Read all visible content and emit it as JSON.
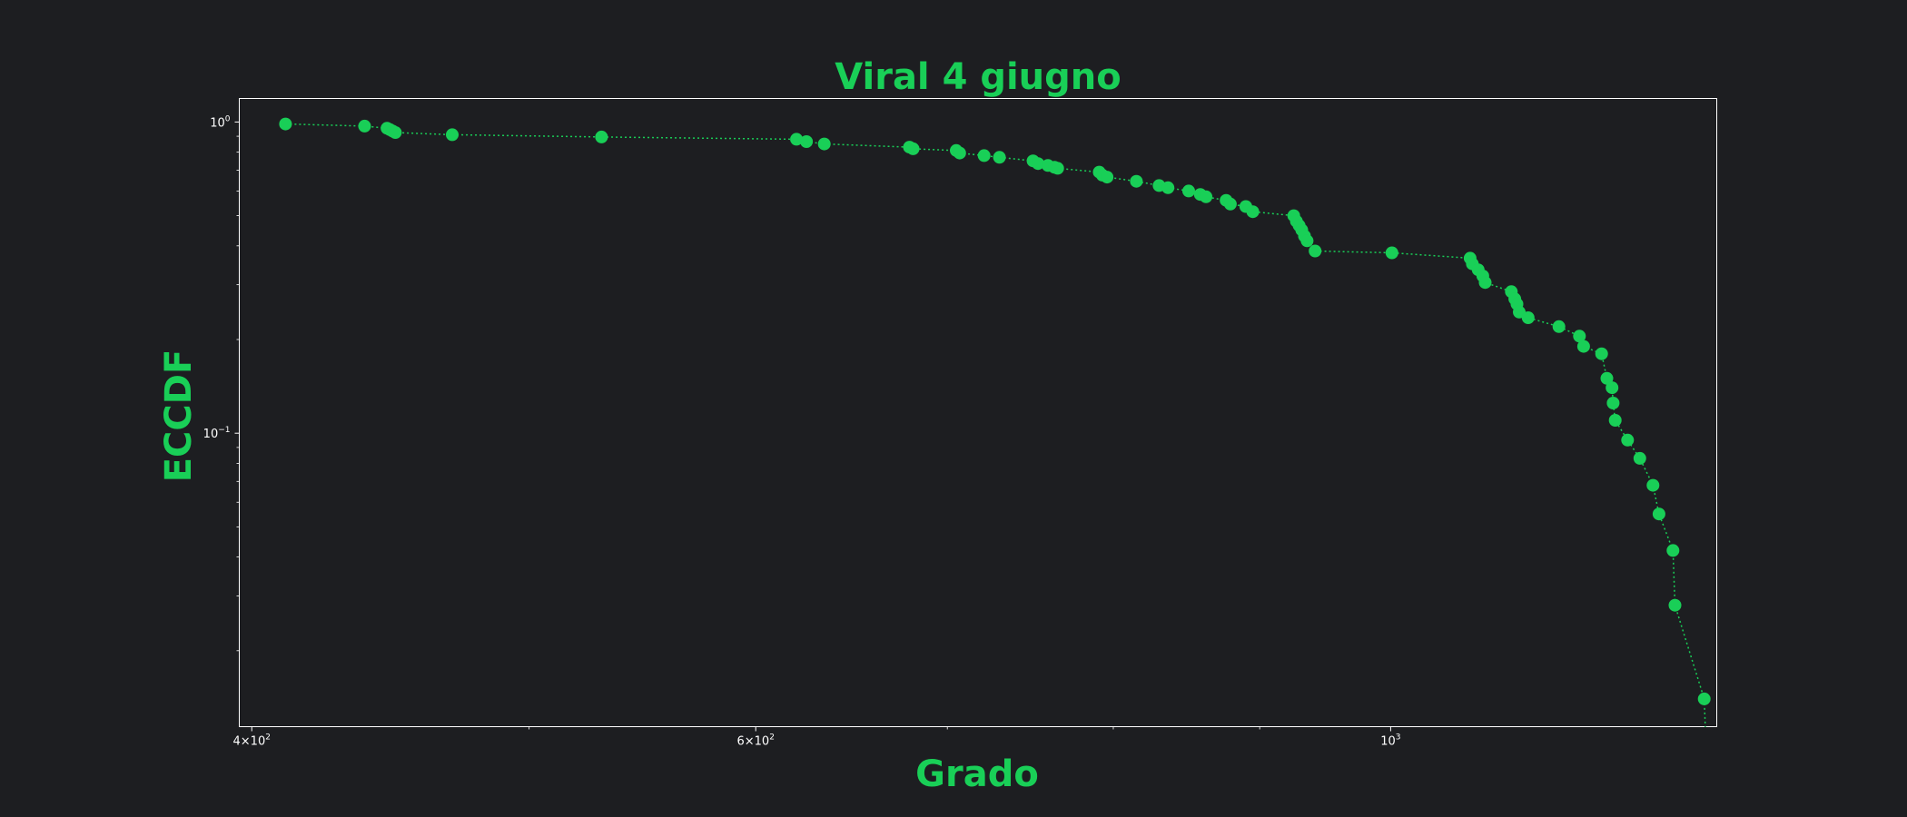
{
  "chart_data": {
    "type": "scatter",
    "title": "Viral 4 giugno",
    "xlabel": "Grado",
    "ylabel": "ECCDF",
    "xscale": "log",
    "yscale": "log",
    "xlim": [
      396,
      1300
    ],
    "ylim": [
      0.0114,
      1.19
    ],
    "grid": false,
    "legend": "none",
    "x_ticks": [
      {
        "value": 400,
        "base": "4",
        "exp": "2"
      },
      {
        "value": 600,
        "base": "6",
        "exp": "2"
      },
      {
        "value": 1000,
        "base": "",
        "exp": "3"
      }
    ],
    "x_minor_ticks": [
      500,
      700,
      800,
      900
    ],
    "y_ticks": [
      {
        "value": 1,
        "exp": "0"
      },
      {
        "value": 0.1,
        "exp": "−1"
      }
    ],
    "y_minor_ticks": [
      0.02,
      0.03,
      0.04,
      0.05,
      0.06,
      0.07,
      0.08,
      0.09,
      0.2,
      0.3,
      0.4,
      0.5,
      0.6,
      0.7,
      0.8,
      0.9
    ],
    "series": [
      {
        "x": [
          411,
          438,
          446,
          447,
          448,
          449,
          470,
          530,
          620,
          625,
          634,
          679,
          681,
          705,
          707,
          721,
          730,
          750,
          753,
          759,
          763,
          765,
          791,
          793,
          796,
          815,
          830,
          836,
          850,
          858,
          862,
          876,
          879,
          890,
          895,
          925,
          927,
          929,
          931,
          933,
          935,
          941,
          1001,
          1066,
          1068,
          1073,
          1077,
          1079,
          1102,
          1105,
          1107,
          1109,
          1117,
          1145,
          1164,
          1168,
          1185,
          1190,
          1195,
          1196,
          1198,
          1210,
          1222,
          1235,
          1241,
          1255,
          1257,
          1287,
          1289
        ],
        "y": [
          0.985,
          0.97,
          0.955,
          0.945,
          0.935,
          0.925,
          0.91,
          0.895,
          0.88,
          0.865,
          0.85,
          0.83,
          0.82,
          0.81,
          0.795,
          0.78,
          0.77,
          0.75,
          0.735,
          0.725,
          0.715,
          0.71,
          0.69,
          0.675,
          0.665,
          0.645,
          0.625,
          0.615,
          0.6,
          0.585,
          0.575,
          0.56,
          0.545,
          0.535,
          0.515,
          0.5,
          0.48,
          0.465,
          0.45,
          0.43,
          0.415,
          0.385,
          0.38,
          0.365,
          0.35,
          0.335,
          0.32,
          0.305,
          0.285,
          0.27,
          0.26,
          0.245,
          0.235,
          0.22,
          0.205,
          0.19,
          0.18,
          0.15,
          0.14,
          0.125,
          0.11,
          0.095,
          0.083,
          0.068,
          0.055,
          0.042,
          0.028,
          0.014,
          0.0095
        ]
      }
    ]
  },
  "colors": {
    "accent": "#19cf57",
    "background": "#1d1e21",
    "axes": "#ffffff"
  }
}
